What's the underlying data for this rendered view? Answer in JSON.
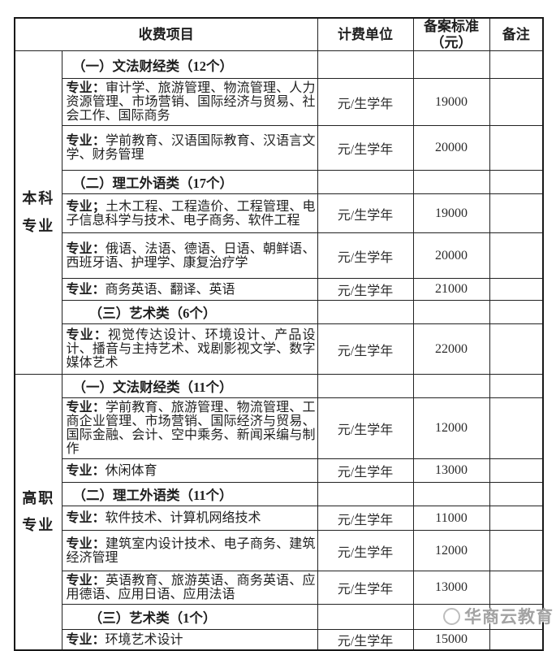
{
  "header": {
    "fee_items": "收费项目",
    "billing_unit": "计费单位",
    "standard_line1": "备案标准",
    "standard_line2": "（元）",
    "note": "备注"
  },
  "groups": [
    {
      "label_lines": [
        "本科",
        "专业"
      ],
      "rows": [
        {
          "type": "category",
          "text": "（一）文法财经类（12个）"
        },
        {
          "type": "major",
          "prefix": "专业：",
          "text": "审计学、旅游管理、物流管理、人力资源管理、市场营销、国际经济与贸易、社会工作、国际商务",
          "unit": "元/生学年",
          "fee": "19000"
        },
        {
          "type": "major",
          "prefix": "专业：",
          "text": "学前教育、汉语国际教育、汉语言文学、财务管理",
          "unit": "元/生学年",
          "fee": "20000"
        },
        {
          "type": "category",
          "text": "（二）理工外语类（17个）"
        },
        {
          "type": "major",
          "prefix": "专业；",
          "text": "土木工程、工程造价、工程管理、电子信息科学与技术、电子商务、软件工程",
          "unit": "元/生学年",
          "fee": "19000"
        },
        {
          "type": "major",
          "prefix": "专业：",
          "text": "俄语、法语、德语、日语、朝鲜语、西班牙语、护理学、康复治疗学",
          "unit": "元/生学年",
          "fee": "20000"
        },
        {
          "type": "major",
          "prefix": "专业：",
          "text": "商务英语、翻译、英语",
          "unit": "元/生学年",
          "fee": "21000"
        },
        {
          "type": "category",
          "text": "（三）艺术类（6个）"
        },
        {
          "type": "major",
          "prefix": "专业：",
          "text": "视觉传达设计、环境设计、产品设计、播音与主持艺术、戏剧影视文学、数字媒体艺术",
          "unit": "元/生学年",
          "fee": "22000"
        }
      ]
    },
    {
      "label_lines": [
        "高职",
        "专业"
      ],
      "rows": [
        {
          "type": "category",
          "text": "（一）文法财经类（11个）"
        },
        {
          "type": "major",
          "prefix": "专业：",
          "text": "学前教育、旅游管理、物流管理、工商企业管理、市场营销、国际经济与贸易、国际金融、会计、空中乘务、新闻采编与制作",
          "unit": "元/生学年",
          "fee": "12000"
        },
        {
          "type": "major",
          "prefix": "专业：",
          "text": "休闲体育",
          "unit": "元/生学年",
          "fee": "13000"
        },
        {
          "type": "category",
          "text": "（二）理工外语类（11个）"
        },
        {
          "type": "major",
          "prefix": "专业：",
          "text": "软件技术、计算机网络技术",
          "unit": "元/生学年",
          "fee": "11000"
        },
        {
          "type": "major",
          "prefix": "专业：",
          "text": "建筑室内设计技术、电子商务、建筑经济管理",
          "unit": "元/生学年",
          "fee": "12000"
        },
        {
          "type": "major",
          "prefix": "专业：",
          "text": "英语教育、旅游英语、商务英语、应用德语、应用日语、应用法语",
          "unit": "元/生学年",
          "fee": "13000"
        },
        {
          "type": "category",
          "text": "（三）艺术类（1个）"
        },
        {
          "type": "major",
          "prefix": "专业：",
          "text": "环境艺术设计",
          "unit": "元/生学年",
          "fee": "15000"
        }
      ]
    }
  ],
  "watermark": {
    "text": "华商云教育"
  }
}
